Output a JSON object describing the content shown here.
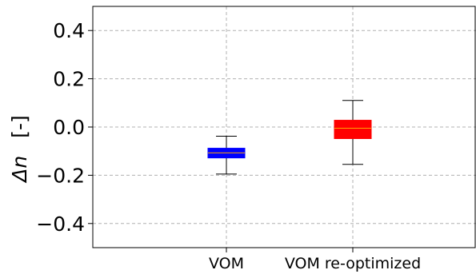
{
  "chart_data": {
    "type": "box",
    "categories": [
      "VOM",
      "VOM re-optimized"
    ],
    "ylabel": "Δn [-]",
    "ylabel_parts": {
      "var": "Δn",
      "unit": "[-]"
    },
    "ylim": [
      -0.5,
      0.5
    ],
    "yticks": [
      0.4,
      0.2,
      0.0,
      -0.2,
      -0.4
    ],
    "ytick_labels": [
      "0.4",
      "0.2",
      "0.0",
      "−0.2",
      "−0.4"
    ],
    "grid": true,
    "boxes": [
      {
        "category": "VOM",
        "whisker_low": -0.195,
        "q1": -0.128,
        "median": -0.107,
        "q3": -0.088,
        "whisker_high": -0.038,
        "color": "#0000ff"
      },
      {
        "category": "VOM re-optimized",
        "whisker_low": -0.155,
        "q1": -0.048,
        "median": -0.005,
        "q3": 0.028,
        "whisker_high": 0.11,
        "color": "#ff0000"
      }
    ],
    "median_color": "#ffa500"
  }
}
